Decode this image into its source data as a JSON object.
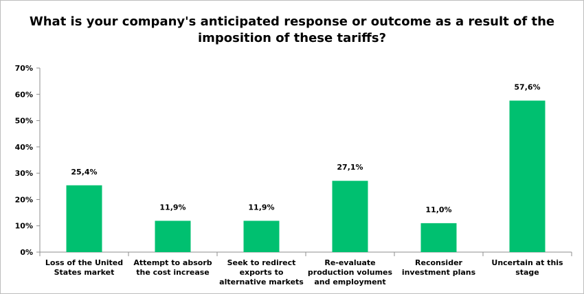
{
  "chart_data": {
    "type": "bar",
    "title": "What is your company's anticipated response or outcome as a result of the imposition of these tariffs?",
    "categories": [
      "Loss of the United States market",
      "Attempt to absorb the cost increase",
      "Seek to redirect exports to alternative markets",
      "Re-evaluate production volumes and employment",
      "Reconsider investment plans",
      "Uncertain at this stage"
    ],
    "category_lines": [
      [
        "Loss of the United",
        "States market"
      ],
      [
        "Attempt to absorb",
        "the cost increase"
      ],
      [
        "Seek to redirect",
        "exports to",
        "alternative markets"
      ],
      [
        "Re-evaluate",
        "production volumes",
        "and employment"
      ],
      [
        "Reconsider",
        "investment plans"
      ],
      [
        "Uncertain at this",
        "stage"
      ]
    ],
    "values": [
      25.4,
      11.9,
      11.9,
      27.1,
      11.0,
      57.6
    ],
    "data_labels": [
      "25,4%",
      "11,9%",
      "11,9%",
      "27,1%",
      "11,0%",
      "57,6%"
    ],
    "ylim": [
      0,
      70
    ],
    "yticks": [
      0,
      10,
      20,
      30,
      40,
      50,
      60,
      70
    ],
    "ytick_labels": [
      "0%",
      "10%",
      "20%",
      "30%",
      "40%",
      "50%",
      "60%",
      "70%"
    ],
    "xlabel": "",
    "ylabel": "",
    "grid": false,
    "legend": "none",
    "bar_color": "#00c070"
  }
}
